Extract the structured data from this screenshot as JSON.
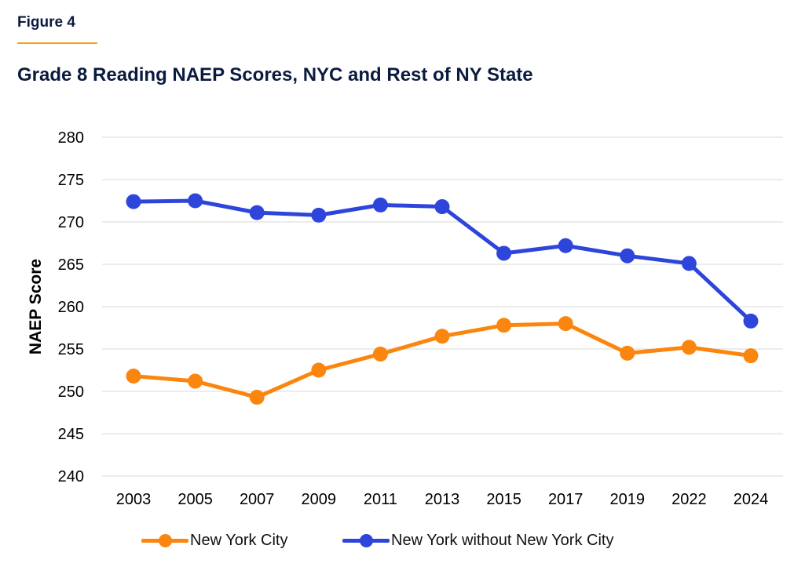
{
  "figure_label": "Figure 4",
  "colors": {
    "nyc": "#fb860f",
    "rest": "#2e45db",
    "grid": "#d9d9d9",
    "title": "#0b1b3f"
  },
  "chart_data": {
    "type": "line",
    "title": "Grade 8 Reading NAEP Scores, NYC and Rest of NY State",
    "xlabel": "",
    "ylabel": "NAEP Score",
    "categories": [
      "2003",
      "2005",
      "2007",
      "2009",
      "2011",
      "2013",
      "2015",
      "2017",
      "2019",
      "2022",
      "2024"
    ],
    "ylim": [
      240,
      280
    ],
    "yticks": [
      "240",
      "245",
      "250",
      "255",
      "260",
      "265",
      "270",
      "275",
      "280"
    ],
    "grid": true,
    "legend_position": "bottom",
    "series": [
      {
        "name": "New York City",
        "values": [
          251.8,
          251.2,
          249.3,
          252.5,
          254.4,
          256.5,
          257.8,
          258.0,
          254.5,
          255.2,
          254.2
        ]
      },
      {
        "name": "New York without New York City",
        "values": [
          272.4,
          272.5,
          271.1,
          270.8,
          272.0,
          271.8,
          266.3,
          267.2,
          266.0,
          265.1,
          258.3
        ]
      }
    ]
  }
}
